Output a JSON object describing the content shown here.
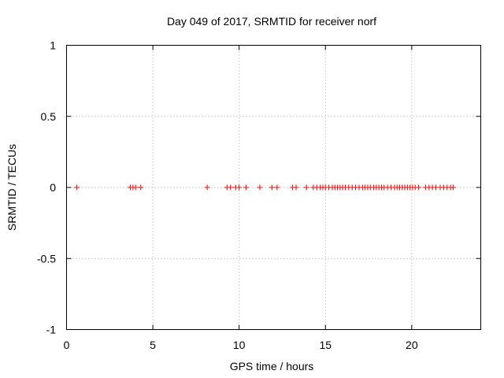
{
  "chart_data": {
    "type": "scatter",
    "title": "Day 049 of 2017, SRMTID for receiver norf",
    "xlabel": "GPS time / hours",
    "ylabel": "SRMTID / TECUs",
    "xlim": [
      0,
      24
    ],
    "ylim": [
      -1,
      1
    ],
    "xticks": [
      0,
      5,
      10,
      15,
      20
    ],
    "xtick_labels": [
      "0",
      "5",
      "10",
      "15",
      "20"
    ],
    "yticks": [
      1,
      0.5,
      0,
      -0.5,
      -1
    ],
    "ytick_labels": [
      "1",
      "0.5",
      "0",
      "-0.5",
      "-1"
    ],
    "grid": true,
    "marker": "+",
    "color": "#ff0000",
    "series": [
      {
        "name": "SRMTID",
        "x": [
          0.6,
          3.7,
          3.85,
          4.0,
          4.3,
          8.15,
          9.3,
          9.5,
          9.8,
          10.0,
          10.4,
          11.2,
          11.9,
          12.2,
          13.1,
          13.3,
          13.9,
          14.3,
          14.5,
          14.7,
          14.85,
          15.0,
          15.2,
          15.4,
          15.55,
          15.7,
          15.85,
          16.0,
          16.15,
          16.35,
          16.55,
          16.75,
          16.95,
          17.15,
          17.3,
          17.45,
          17.6,
          17.8,
          17.95,
          18.1,
          18.25,
          18.4,
          18.6,
          18.8,
          19.0,
          19.15,
          19.3,
          19.45,
          19.6,
          19.75,
          19.9,
          20.05,
          20.2,
          20.4,
          20.8,
          21.0,
          21.2,
          21.4,
          21.65,
          21.85,
          22.05,
          22.25,
          22.4
        ],
        "y": [
          0,
          0,
          0,
          0,
          0,
          0,
          0,
          0,
          0,
          0,
          0,
          0,
          0,
          0,
          0,
          0,
          0,
          0,
          0,
          0,
          0,
          0,
          0,
          0,
          0,
          0,
          0,
          0,
          0,
          0,
          0,
          0,
          0,
          0,
          0,
          0,
          0,
          0,
          0,
          0,
          0,
          0,
          0,
          0,
          0,
          0,
          0,
          0,
          0,
          0,
          0,
          0,
          0,
          0,
          0,
          0,
          0,
          0,
          0,
          0,
          0,
          0,
          0
        ]
      }
    ]
  }
}
